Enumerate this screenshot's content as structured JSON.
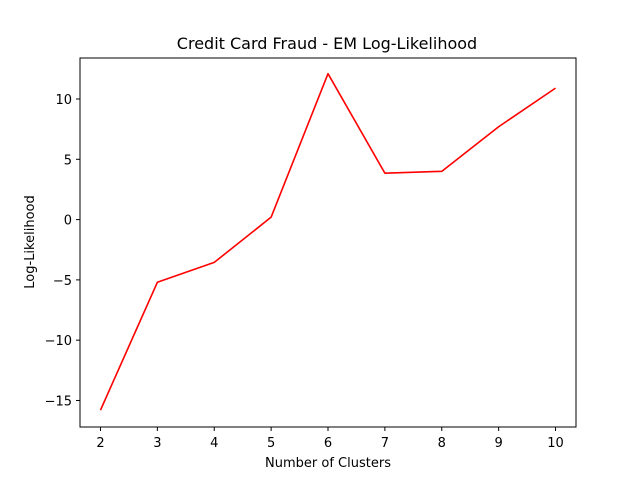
{
  "chart_data": {
    "type": "line",
    "title": "Credit Card Fraud - EM Log-Likelihood",
    "xlabel": "Number of Clusters",
    "ylabel": "Log-Likelihood",
    "xlim": [
      1.64,
      10.36
    ],
    "ylim": [
      -17.2,
      13.4
    ],
    "xticks": [
      "2",
      "3",
      "4",
      "5",
      "6",
      "7",
      "8",
      "9",
      "10"
    ],
    "yticks": [
      "−15",
      "−10",
      "−5",
      "0",
      "5",
      "10"
    ],
    "grid": false,
    "series": [
      {
        "color": "#ff0000",
        "x": [
          2,
          3,
          4,
          5,
          6,
          7,
          8,
          9,
          10
        ],
        "y": [
          -15.8,
          -5.2,
          -3.55,
          0.2,
          12.1,
          3.85,
          4.0,
          7.7,
          10.9
        ]
      }
    ]
  }
}
